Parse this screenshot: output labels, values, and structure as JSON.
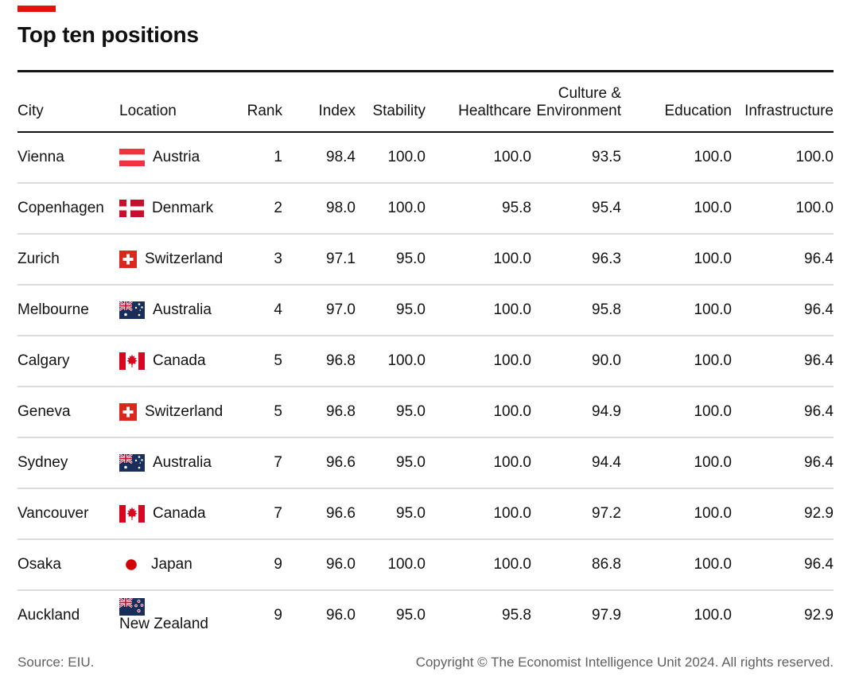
{
  "chart_data": {
    "type": "table",
    "title": "Top ten positions",
    "columns": [
      {
        "label": "City",
        "align": "left"
      },
      {
        "label": "Location",
        "align": "left"
      },
      {
        "label": "Rank",
        "align": "right"
      },
      {
        "label": "Index",
        "align": "right"
      },
      {
        "label": "Stability",
        "align": "right"
      },
      {
        "label": "Healthcare",
        "align": "right"
      },
      {
        "label": "Culture &",
        "label2": "Environment",
        "align": "right"
      },
      {
        "label": "Education",
        "align": "right"
      },
      {
        "label": "Infrastructure",
        "align": "right"
      }
    ],
    "rows": [
      {
        "city": "Vienna",
        "flag": "austria",
        "location": "Austria",
        "rank": "1",
        "index": "98.4",
        "stability": "100.0",
        "healthcare": "100.0",
        "culture": "93.5",
        "education": "100.0",
        "infrastructure": "100.0"
      },
      {
        "city": "Copenhagen",
        "flag": "denmark",
        "location": "Denmark",
        "rank": "2",
        "index": "98.0",
        "stability": "100.0",
        "healthcare": "95.8",
        "culture": "95.4",
        "education": "100.0",
        "infrastructure": "100.0"
      },
      {
        "city": "Zurich",
        "flag": "switzerland",
        "location": "Switzerland",
        "rank": "3",
        "index": "97.1",
        "stability": "95.0",
        "healthcare": "100.0",
        "culture": "96.3",
        "education": "100.0",
        "infrastructure": "96.4"
      },
      {
        "city": "Melbourne",
        "flag": "australia",
        "location": "Australia",
        "rank": "4",
        "index": "97.0",
        "stability": "95.0",
        "healthcare": "100.0",
        "culture": "95.8",
        "education": "100.0",
        "infrastructure": "96.4"
      },
      {
        "city": "Calgary",
        "flag": "canada",
        "location": "Canada",
        "rank": "5",
        "index": "96.8",
        "stability": "100.0",
        "healthcare": "100.0",
        "culture": "90.0",
        "education": "100.0",
        "infrastructure": "96.4"
      },
      {
        "city": "Geneva",
        "flag": "switzerland",
        "location": "Switzerland",
        "rank": "5",
        "index": "96.8",
        "stability": "95.0",
        "healthcare": "100.0",
        "culture": "94.9",
        "education": "100.0",
        "infrastructure": "96.4"
      },
      {
        "city": "Sydney",
        "flag": "australia",
        "location": "Australia",
        "rank": "7",
        "index": "96.6",
        "stability": "95.0",
        "healthcare": "100.0",
        "culture": "94.4",
        "education": "100.0",
        "infrastructure": "96.4"
      },
      {
        "city": "Vancouver",
        "flag": "canada",
        "location": "Canada",
        "rank": "7",
        "index": "96.6",
        "stability": "95.0",
        "healthcare": "100.0",
        "culture": "97.2",
        "education": "100.0",
        "infrastructure": "92.9"
      },
      {
        "city": "Osaka",
        "flag": "japan",
        "location": "Japan",
        "rank": "9",
        "index": "96.0",
        "stability": "100.0",
        "healthcare": "100.0",
        "culture": "86.8",
        "education": "100.0",
        "infrastructure": "96.4"
      },
      {
        "city": "Auckland",
        "flag": "new-zealand",
        "location": "New Zealand",
        "rank": "9",
        "index": "96.0",
        "stability": "95.0",
        "healthcare": "95.8",
        "culture": "97.9",
        "education": "100.0",
        "infrastructure": "92.9"
      }
    ],
    "source": "Source: EIU.",
    "copyright": "Copyright © The Economist Intelligence Unit 2024. All rights reserved."
  },
  "footer": {
    "source": "Source: EIU.",
    "copyright": "Copyright © The Economist Intelligence Unit 2024. All rights reserved."
  },
  "theme": {
    "accent_red": "#E3120B",
    "text_color": "#121212",
    "muted_text": "#5E5F61",
    "rule_color": "#121212",
    "separator_color": "#DCDCDC"
  }
}
